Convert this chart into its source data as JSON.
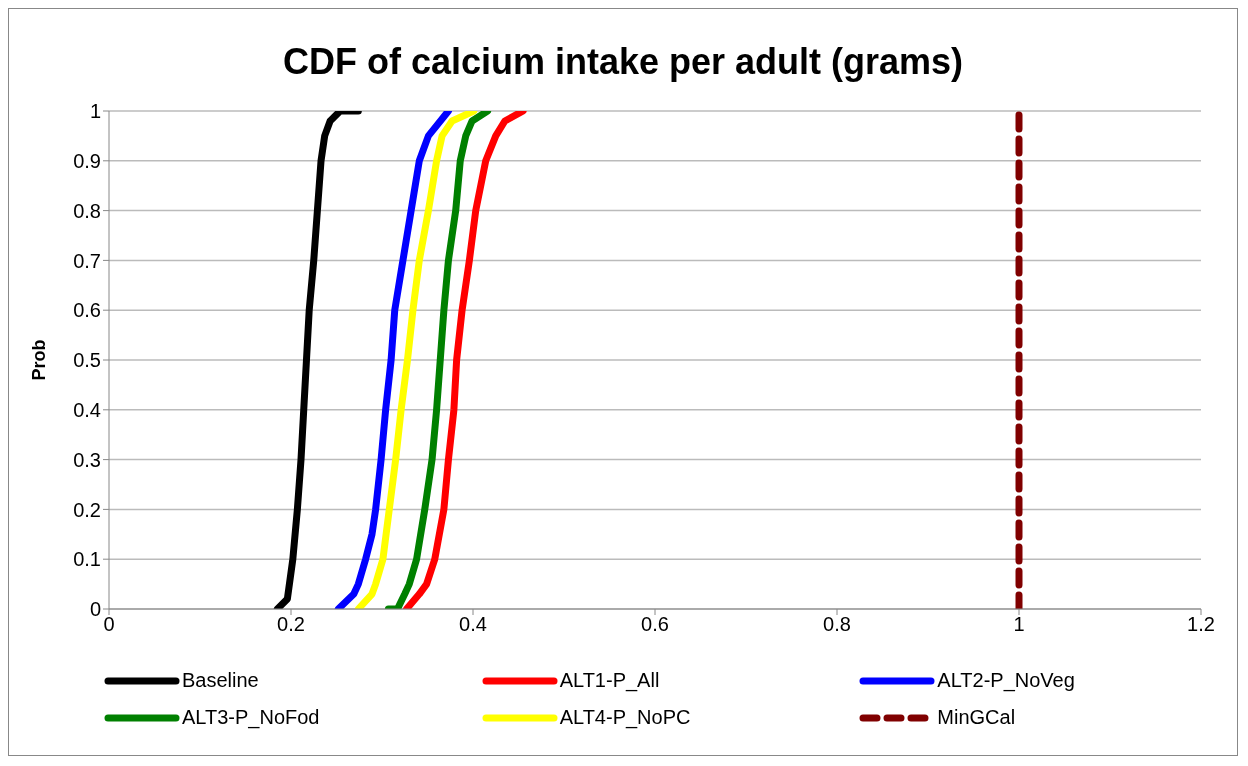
{
  "chart_data": {
    "type": "line",
    "title": "CDF of calcium intake per adult (grams)",
    "ylabel": "Prob",
    "xlim": [
      0,
      1.2
    ],
    "xticks": [
      0,
      0.2,
      0.4,
      0.6,
      0.8,
      1,
      1.2
    ],
    "ylim": [
      0,
      1
    ],
    "yticks": [
      0,
      0.1,
      0.2,
      0.3,
      0.4,
      0.5,
      0.6,
      0.7,
      0.8,
      0.9,
      1
    ],
    "grid": "y",
    "legend": "bottom",
    "marker": "none",
    "line_style": "solid",
    "series": [
      {
        "name": "Baseline",
        "color": "#000000",
        "x": [
          0.185,
          0.196,
          0.202,
          0.207,
          0.211,
          0.214,
          0.217,
          0.22,
          0.225,
          0.229,
          0.233,
          0.237,
          0.243,
          0.254,
          0.274
        ],
        "values": [
          0,
          0.02,
          0.1,
          0.2,
          0.3,
          0.4,
          0.5,
          0.6,
          0.7,
          0.8,
          0.9,
          0.95,
          0.98,
          1,
          1
        ]
      },
      {
        "name": "ALT1-P_All",
        "color": "#ff0000",
        "x": [
          0.327,
          0.341,
          0.349,
          0.358,
          0.368,
          0.373,
          0.379,
          0.382,
          0.388,
          0.396,
          0.403,
          0.414,
          0.425,
          0.435,
          0.455
        ],
        "values": [
          0,
          0.03,
          0.05,
          0.1,
          0.2,
          0.3,
          0.4,
          0.5,
          0.6,
          0.7,
          0.8,
          0.9,
          0.95,
          0.98,
          1
        ]
      },
      {
        "name": "ALT2-P_NoVeg",
        "color": "#0000ff",
        "x": [
          0.252,
          0.269,
          0.274,
          0.282,
          0.289,
          0.293,
          0.299,
          0.304,
          0.31,
          0.314,
          0.323,
          0.332,
          0.341,
          0.351,
          0.373
        ],
        "values": [
          0,
          0.03,
          0.05,
          0.1,
          0.15,
          0.2,
          0.3,
          0.4,
          0.5,
          0.6,
          0.7,
          0.8,
          0.9,
          0.95,
          1
        ]
      },
      {
        "name": "ALT3-P_NoFod",
        "color": "#008000",
        "x": [
          0.307,
          0.317,
          0.325,
          0.33,
          0.338,
          0.347,
          0.355,
          0.36,
          0.364,
          0.368,
          0.373,
          0.381,
          0.386,
          0.392,
          0.399,
          0.416
        ],
        "values": [
          0,
          0,
          0.03,
          0.05,
          0.1,
          0.2,
          0.3,
          0.4,
          0.5,
          0.6,
          0.7,
          0.8,
          0.9,
          0.95,
          0.98,
          1
        ]
      },
      {
        "name": "ALT4-P_NoPC",
        "color": "#ffff00",
        "x": [
          0.274,
          0.289,
          0.293,
          0.301,
          0.308,
          0.315,
          0.321,
          0.328,
          0.334,
          0.341,
          0.351,
          0.36,
          0.366,
          0.377,
          0.401
        ],
        "values": [
          0,
          0.03,
          0.05,
          0.1,
          0.2,
          0.3,
          0.4,
          0.5,
          0.6,
          0.7,
          0.8,
          0.9,
          0.95,
          0.98,
          1
        ]
      },
      {
        "name": "MinGCal",
        "color": "#800000",
        "line_style": "dashed",
        "x": [
          1,
          1
        ],
        "values": [
          0,
          1
        ]
      }
    ]
  }
}
